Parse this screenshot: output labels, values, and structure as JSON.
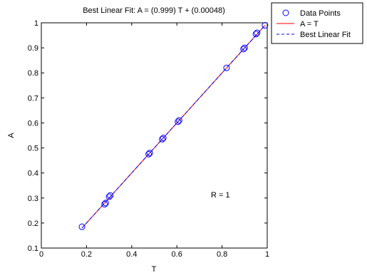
{
  "chart_data": {
    "type": "scatter",
    "title": "Best Linear Fit:  A = (0.999) T + (0.00048)",
    "xlabel": "T",
    "ylabel": "A",
    "xlim": [
      0,
      1
    ],
    "ylim": [
      0.1,
      1
    ],
    "xticks": [
      "0",
      "0.2",
      "0.4",
      "0.6",
      "0.8",
      "1"
    ],
    "yticks": [
      "0.1",
      "0.2",
      "0.3",
      "0.4",
      "0.5",
      "0.6",
      "0.7",
      "0.8",
      "0.9",
      "1"
    ],
    "grid": false,
    "legend_position": "outside-top-right",
    "annotation": "R = 1",
    "series": [
      {
        "name": "Data Points",
        "kind": "scatter",
        "marker": "circle",
        "color": "#0000ff",
        "points": [
          {
            "x": 0.18,
            "y": 0.185
          },
          {
            "x": 0.28,
            "y": 0.275
          },
          {
            "x": 0.285,
            "y": 0.28
          },
          {
            "x": 0.3,
            "y": 0.305
          },
          {
            "x": 0.305,
            "y": 0.31
          },
          {
            "x": 0.475,
            "y": 0.475
          },
          {
            "x": 0.48,
            "y": 0.48
          },
          {
            "x": 0.535,
            "y": 0.535
          },
          {
            "x": 0.54,
            "y": 0.54
          },
          {
            "x": 0.605,
            "y": 0.605
          },
          {
            "x": 0.61,
            "y": 0.61
          },
          {
            "x": 0.82,
            "y": 0.82
          },
          {
            "x": 0.895,
            "y": 0.895
          },
          {
            "x": 0.9,
            "y": 0.9
          },
          {
            "x": 0.95,
            "y": 0.955
          },
          {
            "x": 0.955,
            "y": 0.96
          },
          {
            "x": 0.99,
            "y": 0.99
          }
        ]
      },
      {
        "name": "A = T",
        "kind": "line",
        "style": "solid",
        "color": "#ff0000",
        "x": [
          0.18,
          0.99
        ],
        "y": [
          0.18,
          0.99
        ]
      },
      {
        "name": "Best Linear Fit",
        "kind": "line",
        "style": "dashed",
        "color": "#0000ff",
        "x": [
          0.18,
          0.99
        ],
        "y": [
          0.1803,
          0.98949
        ]
      }
    ]
  }
}
